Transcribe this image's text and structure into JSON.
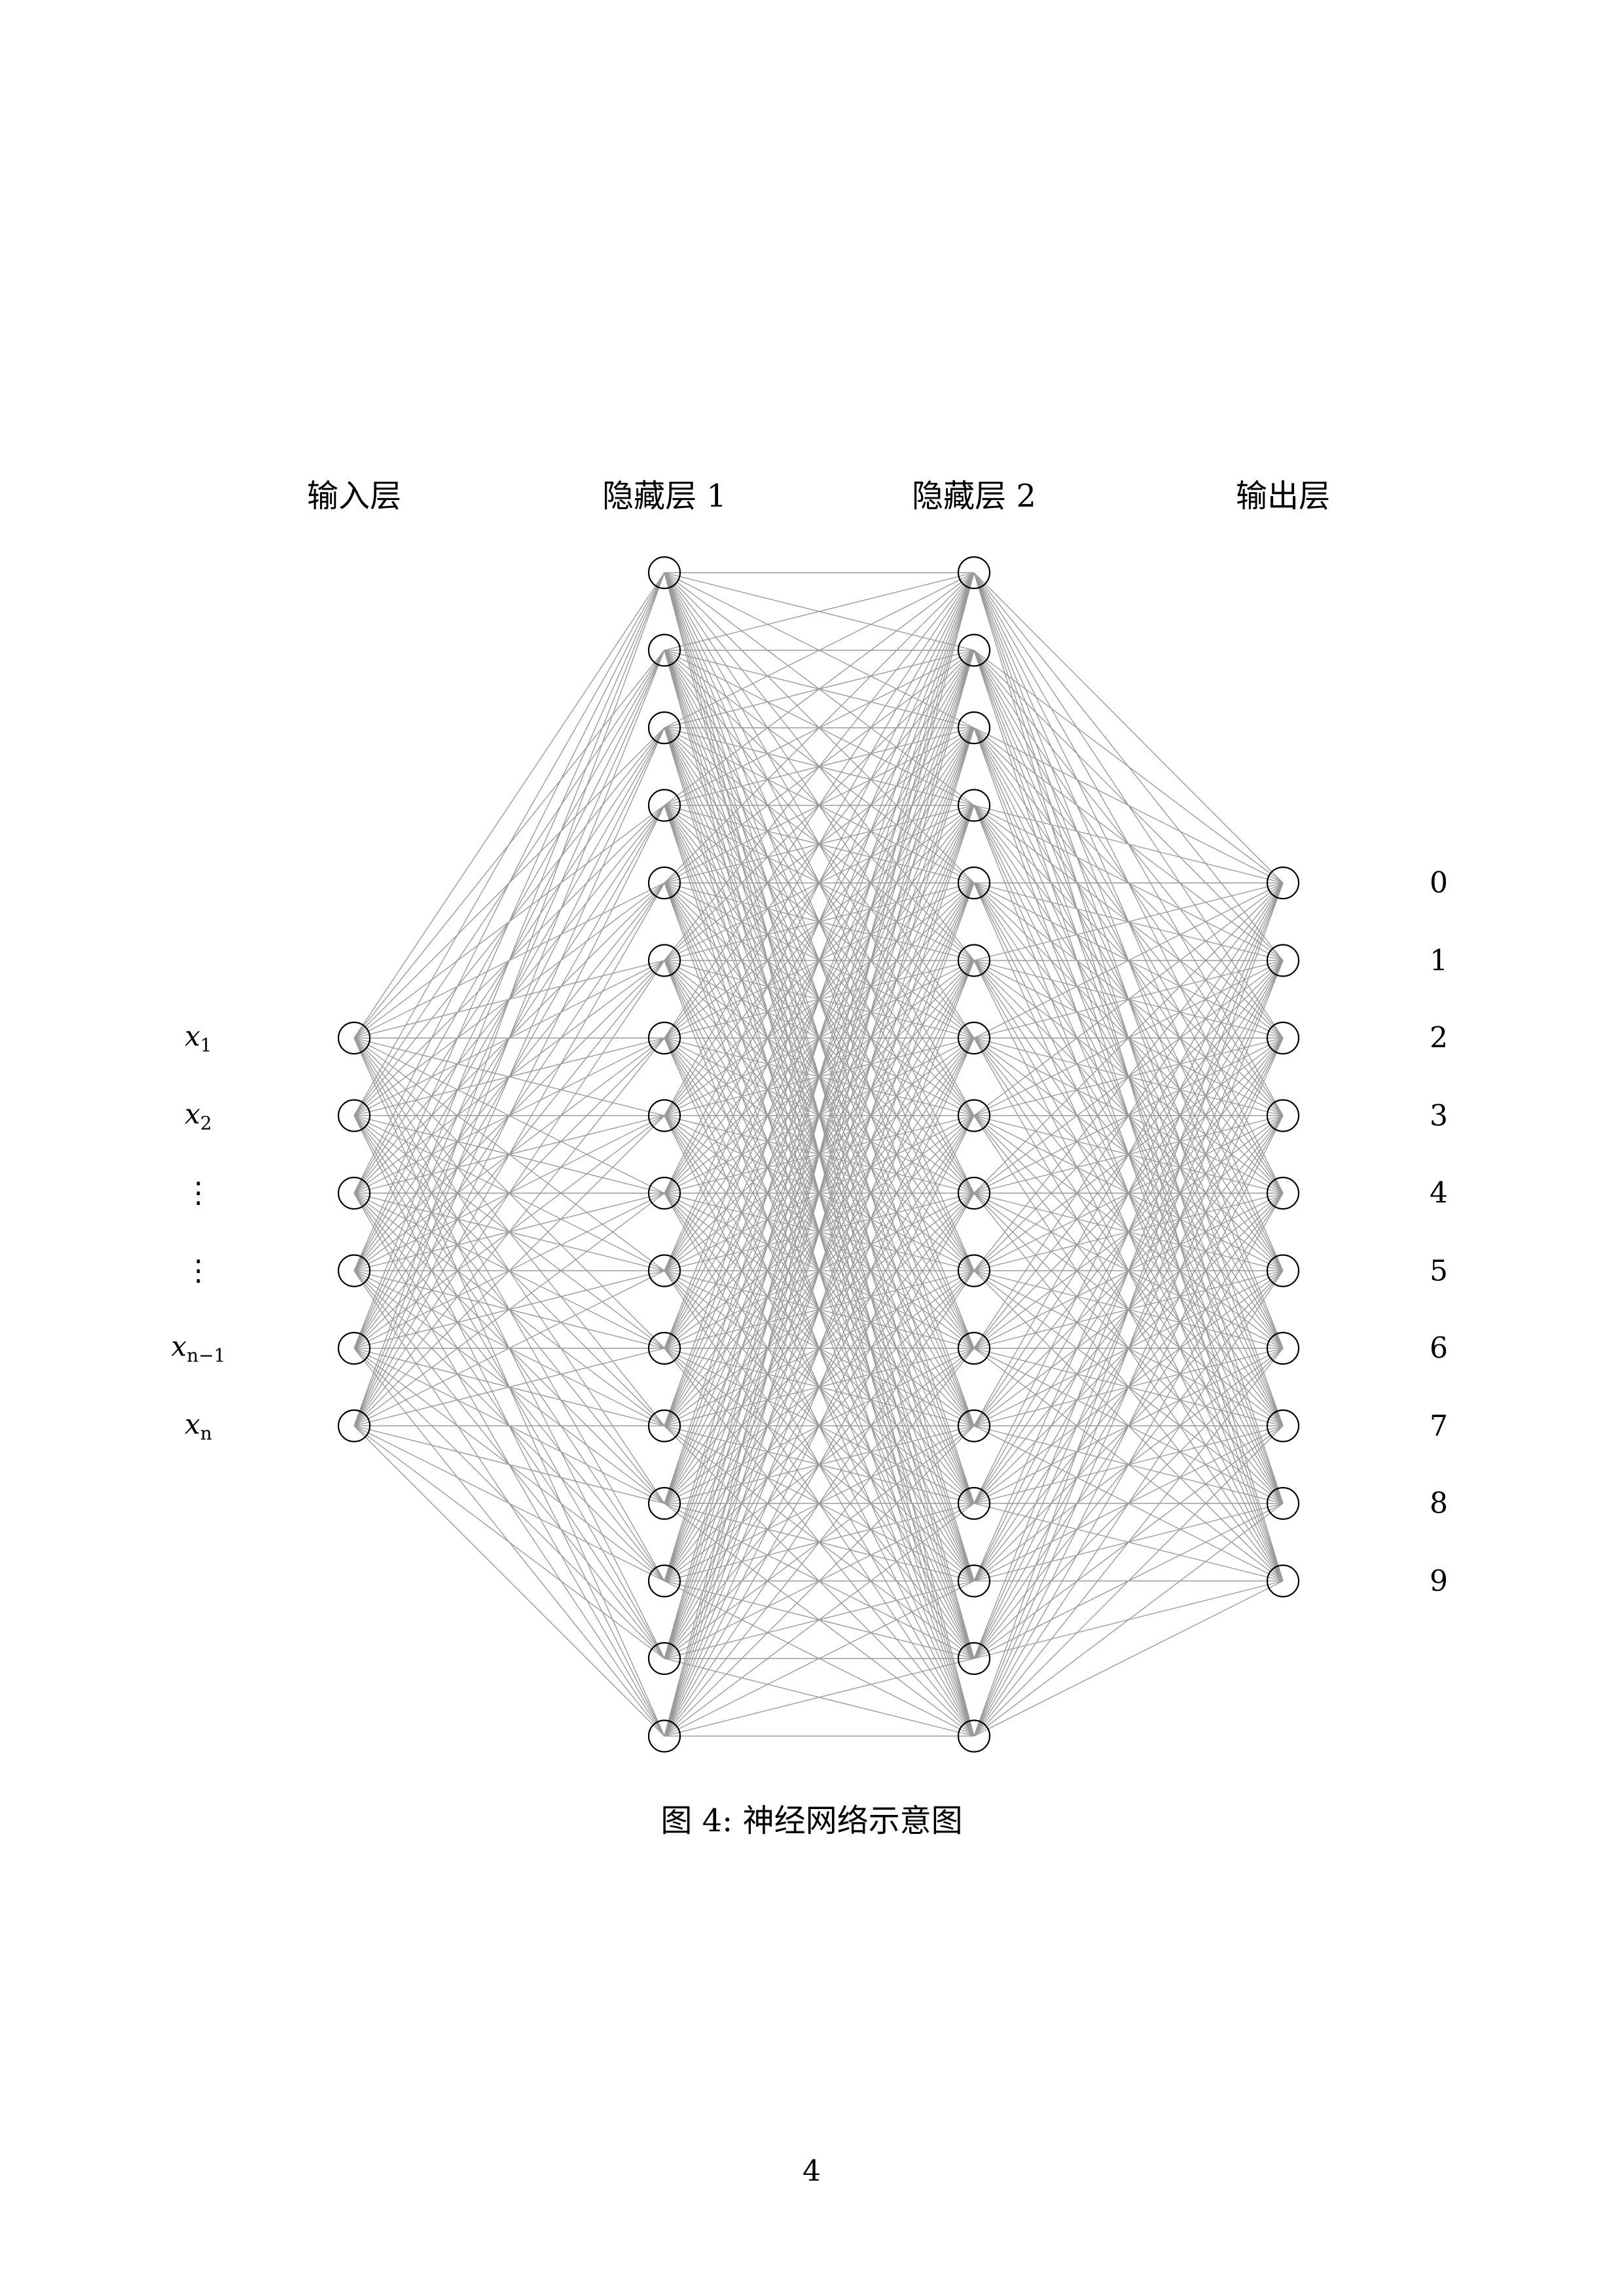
{
  "layer_titles": {
    "input": "输入层",
    "hidden1": "隐藏层 1",
    "hidden2": "隐藏层 2",
    "output": "输出层"
  },
  "input_labels": [
    {
      "var": "x",
      "sub": "1"
    },
    {
      "var": "x",
      "sub": "2"
    },
    {
      "dots": "⋮"
    },
    {
      "dots": "⋮"
    },
    {
      "var": "x",
      "sub": "n−1"
    },
    {
      "var": "x",
      "sub": "n"
    }
  ],
  "output_labels": [
    "0",
    "1",
    "2",
    "3",
    "4",
    "5",
    "6",
    "7",
    "8",
    "9"
  ],
  "network": {
    "input_nodes": 6,
    "hidden1_nodes": 16,
    "hidden2_nodes": 16,
    "output_nodes": 10,
    "fully_connected": true,
    "edge_color": "#9a9a9a",
    "node_stroke_color": "#000000"
  },
  "caption": "图 4: 神经网络示意图",
  "page_number": "4"
}
